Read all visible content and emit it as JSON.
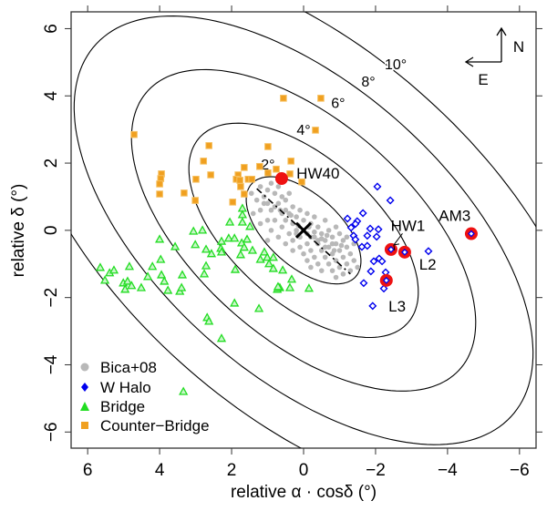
{
  "chart_data": {
    "type": "scatter",
    "xlabel": "relative α · cosδ (°)",
    "ylabel": "relative δ (°)",
    "xlim": [
      6.46,
      -6.46
    ],
    "ylim": [
      -6.48,
      6.5
    ],
    "xticks": [
      6,
      4,
      2,
      0,
      -2,
      -4,
      -6
    ],
    "yticks": [
      6,
      4,
      2,
      0,
      -2,
      -4,
      -6
    ],
    "xtick_labels": [
      "6",
      "4",
      "2",
      "0",
      "−2",
      "−4",
      "−6"
    ],
    "ytick_labels": [
      "6",
      "4",
      "2",
      "0",
      "−2",
      "−4",
      "−6"
    ],
    "grid": false,
    "legend_position": "bottom-left",
    "contours": {
      "levels": [
        2,
        4,
        6,
        8,
        10
      ],
      "labels": [
        "2°",
        "4°",
        "6°",
        "8°",
        "10°"
      ],
      "label_positions": [
        [
          0.99,
          1.98
        ],
        [
          0.0,
          3.0
        ],
        [
          -0.96,
          3.8
        ],
        [
          -1.8,
          4.44
        ],
        [
          -2.56,
          4.96
        ]
      ],
      "axis_ratio": 0.52,
      "major_axis_angle_deg": 45
    },
    "center": [
      0,
      0
    ],
    "major_axis_line": [
      [
        1.3,
        1.24
      ],
      [
        -1.3,
        -1.3
      ]
    ],
    "compass": {
      "north": "N",
      "east": "E"
    },
    "series": [
      {
        "name": "Bica+08",
        "color": "#b8b8b8",
        "marker": "circle",
        "points": [
          [
            1.2,
            1.3
          ],
          [
            1.0,
            1.2
          ],
          [
            0.9,
            1.4
          ],
          [
            1.1,
            1.0
          ],
          [
            0.8,
            1.1
          ],
          [
            0.7,
            1.3
          ],
          [
            0.6,
            1.0
          ],
          [
            1.3,
            0.9
          ],
          [
            1.0,
            0.8
          ],
          [
            0.9,
            0.6
          ],
          [
            0.7,
            0.8
          ],
          [
            0.5,
            0.9
          ],
          [
            0.4,
            1.1
          ],
          [
            0.3,
            0.7
          ],
          [
            0.6,
            0.5
          ],
          [
            0.8,
            0.3
          ],
          [
            1.2,
            0.6
          ],
          [
            1.4,
            0.5
          ],
          [
            1.0,
            0.3
          ],
          [
            0.5,
            0.3
          ],
          [
            0.4,
            0.5
          ],
          [
            0.2,
            0.4
          ],
          [
            0.1,
            0.6
          ],
          [
            0.3,
            0.2
          ],
          [
            0.6,
            0.1
          ],
          [
            0.9,
            0.0
          ],
          [
            1.2,
            0.2
          ],
          [
            0.0,
            0.3
          ],
          [
            -0.1,
            0.5
          ],
          [
            0.2,
            0.0
          ],
          [
            0.4,
            -0.1
          ],
          [
            0.7,
            -0.2
          ],
          [
            1.0,
            -0.3
          ],
          [
            -0.2,
            0.2
          ],
          [
            -0.3,
            0.4
          ],
          [
            -0.1,
            -0.1
          ],
          [
            0.1,
            -0.2
          ],
          [
            0.3,
            -0.3
          ],
          [
            0.5,
            -0.4
          ],
          [
            -0.4,
            0.1
          ],
          [
            -0.6,
            0.3
          ],
          [
            -0.3,
            -0.2
          ],
          [
            -0.5,
            -0.1
          ],
          [
            -0.1,
            -0.4
          ],
          [
            0.1,
            -0.5
          ],
          [
            0.3,
            -0.6
          ],
          [
            -0.7,
            0.0
          ],
          [
            -0.8,
            -0.2
          ],
          [
            -0.6,
            -0.3
          ],
          [
            -0.4,
            -0.4
          ],
          [
            -0.2,
            -0.6
          ],
          [
            0.0,
            -0.7
          ],
          [
            -0.9,
            0.1
          ],
          [
            -1.0,
            -0.1
          ],
          [
            -1.1,
            -0.3
          ],
          [
            -0.9,
            -0.4
          ],
          [
            -0.7,
            -0.5
          ],
          [
            -0.5,
            -0.6
          ],
          [
            -0.3,
            -0.8
          ],
          [
            -0.1,
            -0.9
          ],
          [
            -1.2,
            -0.5
          ],
          [
            -1.0,
            -0.6
          ],
          [
            -0.8,
            -0.7
          ],
          [
            -0.6,
            -0.8
          ],
          [
            -0.4,
            -1.0
          ],
          [
            -0.2,
            -1.1
          ],
          [
            -1.3,
            -0.7
          ],
          [
            -1.1,
            -0.8
          ],
          [
            -0.9,
            -0.9
          ],
          [
            -0.7,
            -1.0
          ],
          [
            -0.5,
            -1.2
          ],
          [
            -1.4,
            -0.9
          ],
          [
            -1.2,
            -1.0
          ],
          [
            -1.0,
            -1.1
          ],
          [
            -0.8,
            -1.2
          ],
          [
            -1.3,
            -1.2
          ],
          [
            -1.1,
            -1.3
          ],
          [
            -0.9,
            -1.4
          ],
          [
            -1.5,
            -1.1
          ],
          [
            -1.4,
            -0.4
          ],
          [
            -1.2,
            -0.2
          ],
          [
            0.0,
            0.0
          ],
          [
            -0.2,
            -0.2
          ],
          [
            0.2,
            -0.1
          ],
          [
            -0.4,
            -0.3
          ],
          [
            -0.6,
            -0.5
          ],
          [
            -0.8,
            -0.4
          ],
          [
            0.5,
            0.6
          ],
          [
            0.8,
            0.7
          ],
          [
            1.1,
            0.8
          ],
          [
            -0.15,
            0.1
          ],
          [
            0.15,
            0.15
          ],
          [
            -0.3,
            -0.05
          ],
          [
            -0.5,
            -0.25
          ],
          [
            -0.65,
            -0.15
          ],
          [
            -0.85,
            -0.6
          ],
          [
            -1.05,
            -0.45
          ],
          [
            0.35,
            0.45
          ],
          [
            0.65,
            0.6
          ],
          [
            1.45,
            1.1
          ]
        ]
      },
      {
        "name": "W Halo",
        "color": "#0000ee",
        "marker": "diamond",
        "points": [
          [
            -2.05,
            1.3
          ],
          [
            -2.41,
            0.89
          ],
          [
            -1.65,
            0.51
          ],
          [
            -1.22,
            0.35
          ],
          [
            -1.49,
            0.27
          ],
          [
            -1.44,
            0.19
          ],
          [
            -1.32,
            0.08
          ],
          [
            -1.85,
            0.05
          ],
          [
            -2.08,
            0.03
          ],
          [
            -1.39,
            -0.16
          ],
          [
            -1.77,
            -0.16
          ],
          [
            -2.03,
            -0.19
          ],
          [
            -1.44,
            -0.27
          ],
          [
            -1.62,
            -0.49
          ],
          [
            -1.77,
            -0.46
          ],
          [
            -1.95,
            -0.92
          ],
          [
            -2.1,
            -0.84
          ],
          [
            -2.18,
            -0.92
          ],
          [
            -1.87,
            -1.22
          ],
          [
            -2.28,
            -1.25
          ],
          [
            -1.67,
            -1.57
          ],
          [
            -2.23,
            -1.73
          ],
          [
            -1.92,
            -2.25
          ],
          [
            -3.47,
            -0.62
          ]
        ]
      },
      {
        "name": "Bridge",
        "color": "#22dd22",
        "marker": "triangle",
        "points": [
          [
            1.7,
            0.65
          ],
          [
            1.7,
            0.46
          ],
          [
            2.05,
            0.24
          ],
          [
            1.7,
            0.24
          ],
          [
            3.06,
            -0.03
          ],
          [
            2.81,
            0.0
          ],
          [
            1.49,
            0.11
          ],
          [
            4.0,
            -0.27
          ],
          [
            3.01,
            -0.43
          ],
          [
            3.57,
            -0.49
          ],
          [
            2.28,
            -0.33
          ],
          [
            2.08,
            -0.24
          ],
          [
            1.92,
            -0.24
          ],
          [
            1.57,
            -0.27
          ],
          [
            1.72,
            -0.38
          ],
          [
            2.71,
            -0.57
          ],
          [
            2.56,
            -0.7
          ],
          [
            2.3,
            -0.54
          ],
          [
            2.28,
            -0.65
          ],
          [
            1.65,
            -0.51
          ],
          [
            1.42,
            -0.6
          ],
          [
            1.75,
            -0.73
          ],
          [
            1.09,
            -0.65
          ],
          [
            1.01,
            -0.81
          ],
          [
            0.84,
            -0.81
          ],
          [
            3.97,
            -0.87
          ],
          [
            4.84,
            -1.08
          ],
          [
            4.2,
            -1.08
          ],
          [
            5.65,
            -1.11
          ],
          [
            5.39,
            -1.27
          ],
          [
            5.27,
            -1.19
          ],
          [
            2.71,
            -1.06
          ],
          [
            1.9,
            -1.17
          ],
          [
            0.58,
            -1.19
          ],
          [
            4.33,
            -1.38
          ],
          [
            3.95,
            -1.33
          ],
          [
            3.37,
            -1.33
          ],
          [
            2.76,
            -1.3
          ],
          [
            5.52,
            -1.49
          ],
          [
            5.01,
            -1.57
          ],
          [
            4.89,
            -1.52
          ],
          [
            4.78,
            -1.65
          ],
          [
            4.51,
            -1.71
          ],
          [
            3.87,
            -1.52
          ],
          [
            4.96,
            -1.76
          ],
          [
            3.77,
            -1.79
          ],
          [
            3.44,
            -1.82
          ],
          [
            3.39,
            -1.71
          ],
          [
            1.92,
            -2.17
          ],
          [
            1.24,
            -2.33
          ],
          [
            0.73,
            -1.76
          ],
          [
            0.66,
            -1.71
          ],
          [
            2.68,
            -2.6
          ],
          [
            2.63,
            -2.71
          ],
          [
            2.28,
            -3.22
          ],
          [
            3.34,
            -4.8
          ],
          [
            0.33,
            -1.46
          ],
          [
            -0.15,
            -1.73
          ],
          [
            0.38,
            -1.71
          ],
          [
            0.71,
            -1.68
          ],
          [
            1.2,
            -0.87
          ],
          [
            0.96,
            -1.0
          ],
          [
            0.84,
            -1.14
          ]
        ]
      },
      {
        "name": "Counter−Bridge",
        "color": "#f0a020",
        "marker": "square",
        "points": [
          [
            0.56,
            3.93
          ],
          [
            -0.48,
            3.93
          ],
          [
            -0.33,
            2.98
          ],
          [
            4.71,
            2.85
          ],
          [
            2.63,
            2.52
          ],
          [
            0.99,
            2.49
          ],
          [
            2.78,
            2.06
          ],
          [
            0.35,
            2.06
          ],
          [
            1.65,
            1.87
          ],
          [
            1.22,
            1.9
          ],
          [
            3.95,
            1.68
          ],
          [
            3.97,
            1.54
          ],
          [
            4.0,
            1.38
          ],
          [
            4.0,
            1.08
          ],
          [
            2.58,
            1.65
          ],
          [
            2.99,
            1.52
          ],
          [
            3.32,
            1.11
          ],
          [
            3.01,
            0.89
          ],
          [
            1.82,
            1.65
          ],
          [
            1.87,
            1.52
          ],
          [
            1.77,
            1.49
          ],
          [
            1.75,
            1.3
          ],
          [
            1.65,
            1.08
          ],
          [
            1.97,
            0.84
          ],
          [
            1.54,
            1.52
          ],
          [
            1.44,
            1.52
          ],
          [
            0.99,
            1.71
          ],
          [
            0.76,
            1.82
          ],
          [
            0.38,
            1.68
          ],
          [
            0.05,
            1.44
          ]
        ]
      }
    ],
    "highlighted": [
      {
        "label": "HW40",
        "point": [
          0.61,
          1.54
        ],
        "label_pos": [
          -0.4,
          1.7
        ],
        "color": "#ee1111"
      },
      {
        "label": "HW1",
        "point": [
          -2.43,
          -0.57
        ],
        "label_pos": [
          -2.9,
          0.15
        ],
        "color": "#ee1111",
        "arrow": true
      },
      {
        "label": "L2",
        "point": [
          -2.81,
          -0.65
        ],
        "label_pos": [
          -3.45,
          -1.0
        ],
        "color": "#ee1111"
      },
      {
        "label": "L3",
        "point": [
          -2.3,
          -1.49
        ],
        "label_pos": [
          -2.6,
          -2.25
        ],
        "color": "#ee1111"
      },
      {
        "label": "AM3",
        "point": [
          -4.66,
          -0.1
        ],
        "label_pos": [
          -4.2,
          0.45
        ],
        "color": "#ee1111"
      }
    ]
  }
}
